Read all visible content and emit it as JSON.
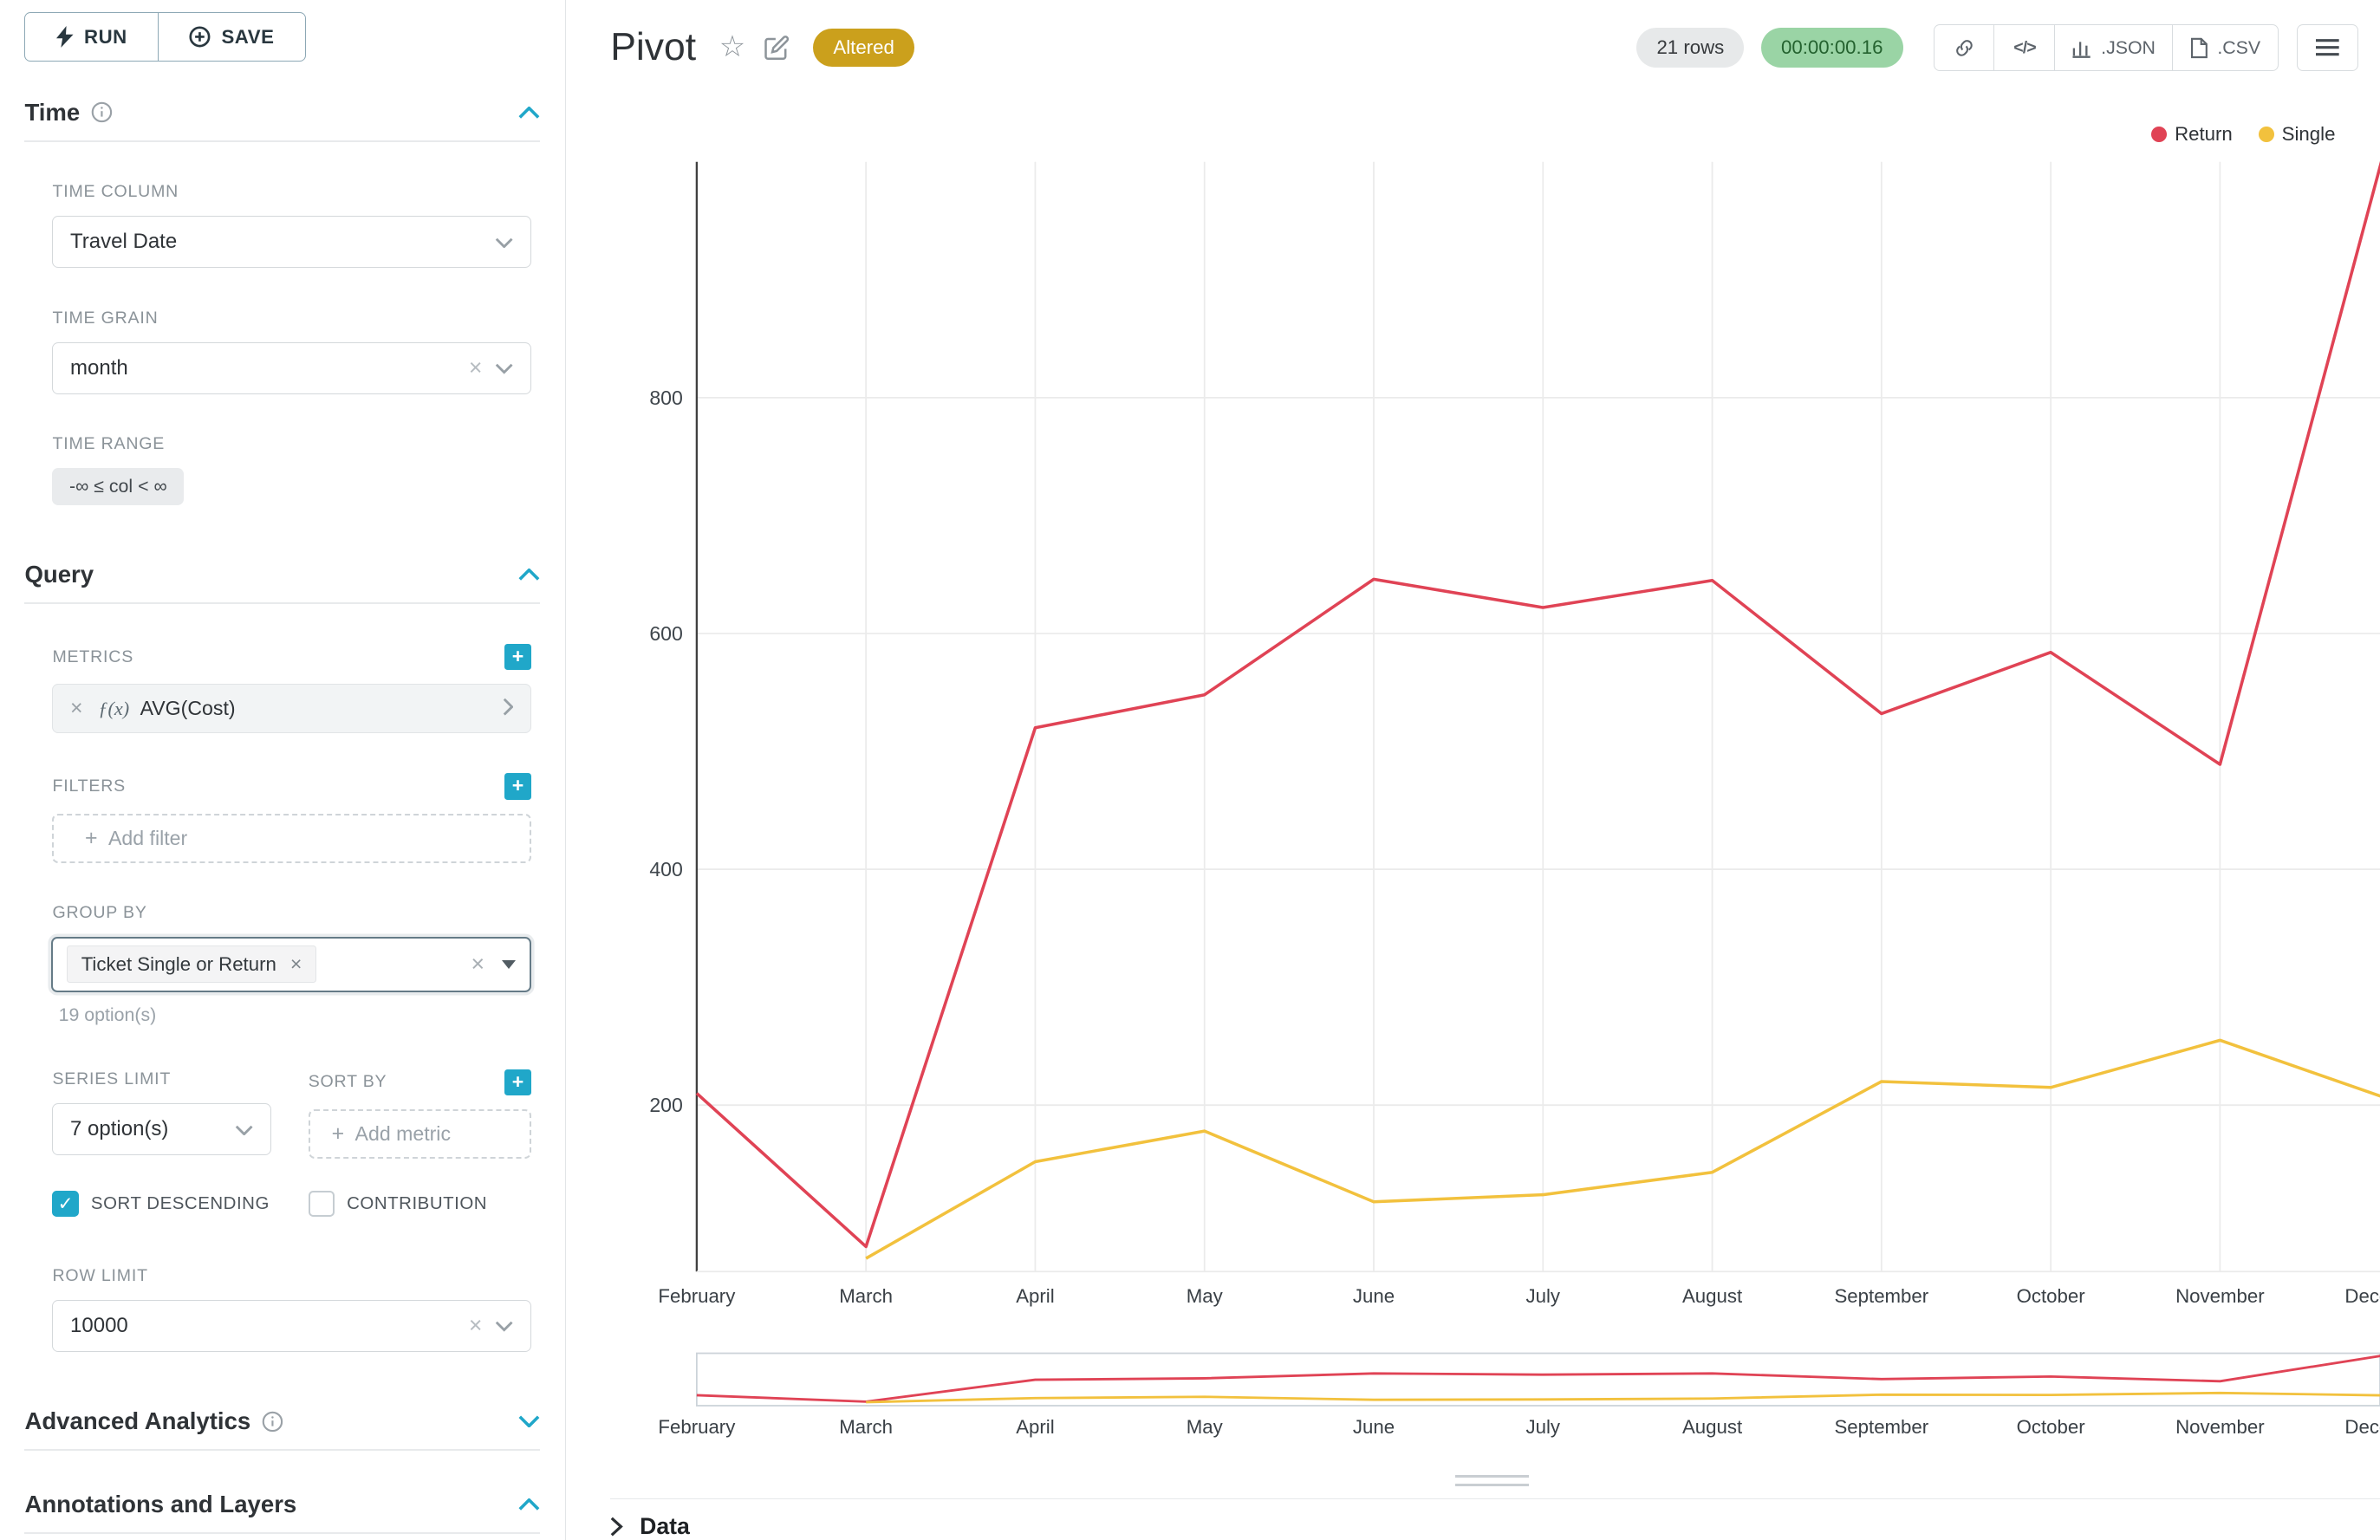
{
  "icons": {
    "plus": "+",
    "close": "×",
    "check": "✓",
    "star": "☆"
  },
  "sidebar": {
    "run_label": "RUN",
    "save_label": "SAVE",
    "time_section": {
      "title": "Time",
      "time_column": {
        "label": "TIME COLUMN",
        "value": "Travel Date"
      },
      "time_grain": {
        "label": "TIME GRAIN",
        "value": "month"
      },
      "time_range": {
        "label": "TIME RANGE",
        "value": "-∞ ≤ col < ∞"
      }
    },
    "query_section": {
      "title": "Query",
      "metrics": {
        "label": "METRICS",
        "fx": "ƒ(x)",
        "value": "AVG(Cost)"
      },
      "filters": {
        "label": "FILTERS",
        "placeholder": "Add filter"
      },
      "group_by": {
        "label": "GROUP BY",
        "tag": "Ticket Single or Return",
        "hint": "19 option(s)"
      },
      "series_limit": {
        "label": "SERIES LIMIT",
        "value": "7 option(s)"
      },
      "sort_by": {
        "label": "SORT BY",
        "placeholder": "Add metric"
      },
      "sort_descending_label": "SORT DESCENDING",
      "contribution_label": "CONTRIBUTION",
      "row_limit": {
        "label": "ROW LIMIT",
        "value": "10000"
      }
    },
    "advanced_analytics_title": "Advanced Analytics",
    "annotations_title": "Annotations and Layers"
  },
  "header": {
    "title": "Pivot",
    "altered_badge": "Altered",
    "row_count": "21 rows",
    "timer": "00:00:00.16",
    "code_icon": "</>",
    "json_label": ".JSON",
    "csv_label": ".CSV"
  },
  "data_panel": {
    "title": "Data"
  },
  "chart_data": {
    "type": "line",
    "title": "Pivot",
    "categories": [
      "February",
      "March",
      "April",
      "May",
      "June",
      "July",
      "August",
      "September",
      "October",
      "November",
      "December"
    ],
    "series": [
      {
        "name": "Return",
        "color": "#e04355",
        "values": [
          210,
          80,
          520,
          548,
          646,
          622,
          645,
          532,
          584,
          489,
          1025
        ]
      },
      {
        "name": "Single",
        "color": "#f2c13d",
        "values": [
          null,
          70,
          152,
          178,
          118,
          124,
          143,
          220,
          215,
          255,
          205
        ]
      }
    ],
    "xlabel": "",
    "ylabel": "",
    "yticks": [
      200,
      400,
      600,
      800
    ],
    "ylim": [
      0,
      1050
    ],
    "grid": true,
    "legend_position": "top-right",
    "has_preview_brush": true
  }
}
